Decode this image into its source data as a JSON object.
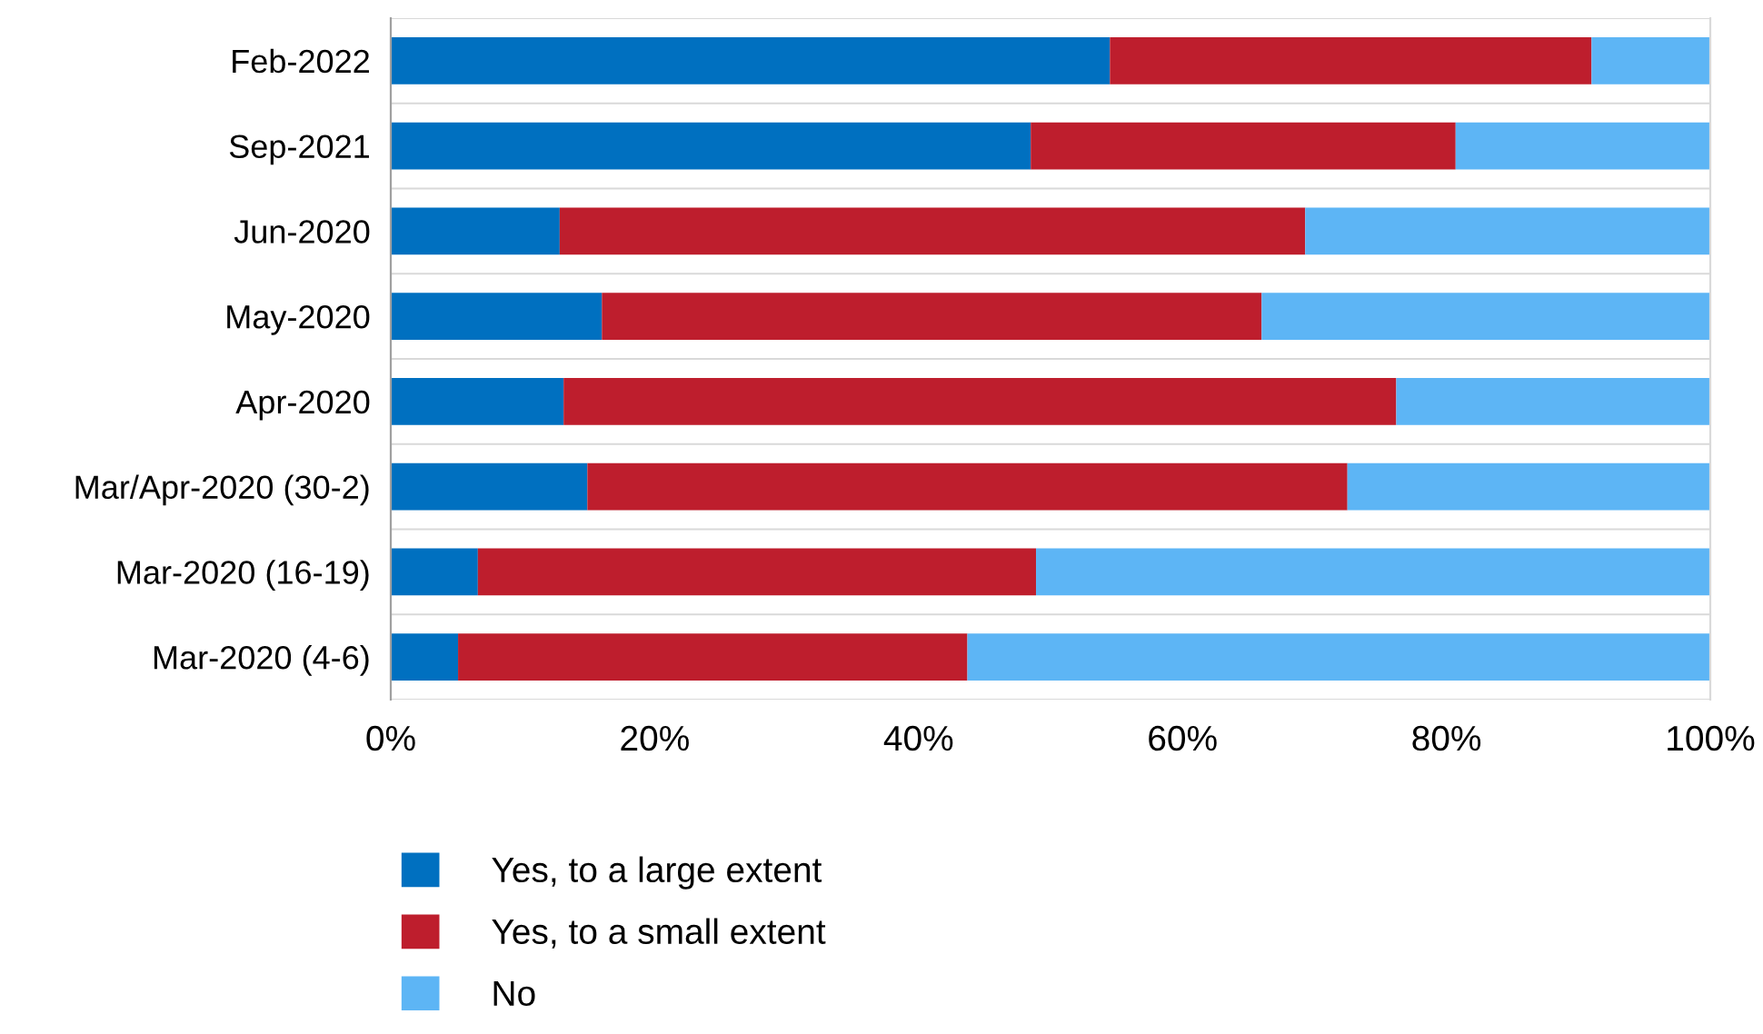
{
  "chart_data": {
    "type": "bar",
    "orientation": "horizontal",
    "stacked": true,
    "categories": [
      "Feb-2022",
      "Sep-2021",
      "Jun-2020",
      "May-2020",
      "Apr-2020",
      "Mar/Apr-2020 (30-2)",
      "Mar-2020 (16-19)",
      "Mar-2020 (4-6)"
    ],
    "series": [
      {
        "name": "Yes, to a large extent",
        "color": "#0070c0",
        "values": [
          54.5,
          48.5,
          12.8,
          16.0,
          13.1,
          14.9,
          6.6,
          5.1
        ]
      },
      {
        "name": "Yes, to a small extent",
        "color": "#be1e2d",
        "values": [
          36.5,
          32.2,
          56.5,
          50.0,
          63.1,
          57.6,
          42.3,
          38.6
        ]
      },
      {
        "name": "No",
        "color": "#5db5f5",
        "values": [
          9.0,
          19.3,
          30.7,
          34.0,
          23.8,
          27.5,
          51.1,
          56.3
        ]
      }
    ],
    "xlim": [
      0,
      100
    ],
    "xticks": [
      {
        "value": 0,
        "label": "0%"
      },
      {
        "value": 20,
        "label": "20%"
      },
      {
        "value": 40,
        "label": "40%"
      },
      {
        "value": 60,
        "label": "60%"
      },
      {
        "value": 80,
        "label": "80%"
      },
      {
        "value": 100,
        "label": "100%"
      }
    ],
    "legend": "bottom"
  }
}
